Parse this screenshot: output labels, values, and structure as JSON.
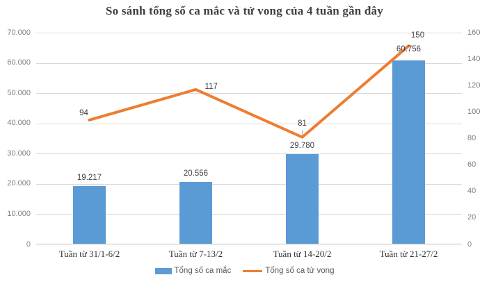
{
  "chart_data": {
    "type": "bar",
    "subtype": "combo-bar-line-dual-axis",
    "title": "So sánh tổng số ca mắc và tử vong của 4 tuần gần đây",
    "categories": [
      "Tuần từ 31/1-6/2",
      "Tuần từ 7-13/2",
      "Tuần từ 14-20/2",
      "Tuần từ 21-27/2"
    ],
    "series": [
      {
        "name": "Tổng số ca mắc",
        "type": "bar",
        "axis": "left",
        "color": "#5b9bd5",
        "values": [
          19217,
          20556,
          29780,
          60756
        ],
        "labels": [
          "19.217",
          "20.556",
          "29.780",
          "60.756"
        ]
      },
      {
        "name": "Tổng số ca tử vong",
        "type": "line",
        "axis": "right",
        "color": "#ed7d31",
        "values": [
          94,
          117,
          81,
          150
        ],
        "labels": [
          "94",
          "117",
          "81",
          "150"
        ]
      }
    ],
    "left_axis": {
      "min": 0,
      "max": 70000,
      "step": 10000,
      "tick_labels": [
        "70.000",
        "60.000",
        "50.000",
        "40.000",
        "30.000",
        "20.000",
        "10.000",
        "0"
      ]
    },
    "right_axis": {
      "min": 0,
      "max": 160,
      "step": 20,
      "tick_labels": [
        "160",
        "140",
        "120",
        "100",
        "80",
        "60",
        "40",
        "20",
        "0"
      ]
    },
    "grid": true,
    "legend_position": "bottom"
  },
  "colors": {
    "bar_fill": "#5b9bd5",
    "line_stroke": "#ed7d31",
    "gridline": "#d9d9d9",
    "axis_line": "#bfbfbf",
    "tick_text": "#7f7f7f",
    "data_label_text": "#404040",
    "title_text": "#3f3f3f",
    "category_text": "#333333",
    "legend_text": "#595959",
    "background": "#ffffff"
  }
}
